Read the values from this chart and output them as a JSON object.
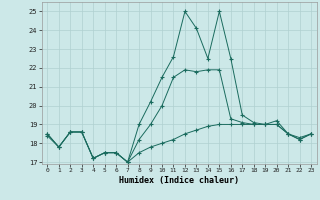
{
  "xlabel": "Humidex (Indice chaleur)",
  "ylabel": "",
  "bg_color": "#cce8e8",
  "grid_color": "#b0d0d0",
  "line_color": "#1a6b5e",
  "x_values": [
    0,
    1,
    2,
    3,
    4,
    5,
    6,
    7,
    8,
    9,
    10,
    11,
    12,
    13,
    14,
    15,
    16,
    17,
    18,
    19,
    20,
    21,
    22,
    23
  ],
  "series1": [
    18.5,
    17.8,
    18.6,
    18.6,
    17.2,
    17.5,
    17.5,
    17.0,
    17.5,
    17.8,
    18.0,
    18.2,
    18.5,
    18.7,
    18.9,
    19.0,
    19.0,
    19.0,
    19.0,
    19.0,
    19.0,
    18.5,
    18.3,
    18.5
  ],
  "series2": [
    18.5,
    17.8,
    18.6,
    18.6,
    17.2,
    17.5,
    17.5,
    17.0,
    18.2,
    19.0,
    20.0,
    21.5,
    21.9,
    21.8,
    21.9,
    21.9,
    19.3,
    19.1,
    19.0,
    19.0,
    19.0,
    18.5,
    18.2,
    18.5
  ],
  "series3": [
    18.4,
    17.8,
    18.6,
    18.6,
    17.2,
    17.5,
    17.5,
    17.0,
    19.0,
    20.2,
    21.5,
    22.6,
    25.0,
    24.1,
    22.5,
    25.0,
    22.5,
    19.5,
    19.1,
    19.0,
    19.2,
    18.5,
    18.2,
    18.5
  ],
  "ylim": [
    16.9,
    25.5
  ],
  "xlim": [
    -0.5,
    23.5
  ],
  "yticks": [
    17,
    18,
    19,
    20,
    21,
    22,
    23,
    24,
    25
  ],
  "xticks": [
    0,
    1,
    2,
    3,
    4,
    5,
    6,
    7,
    8,
    9,
    10,
    11,
    12,
    13,
    14,
    15,
    16,
    17,
    18,
    19,
    20,
    21,
    22,
    23
  ],
  "xtick_labels": [
    "0",
    "1",
    "2",
    "3",
    "4",
    "5",
    "6",
    "7",
    "8",
    "9",
    "10",
    "11",
    "12",
    "13",
    "14",
    "15",
    "16",
    "17",
    "18",
    "19",
    "20",
    "21",
    "22",
    "23"
  ]
}
